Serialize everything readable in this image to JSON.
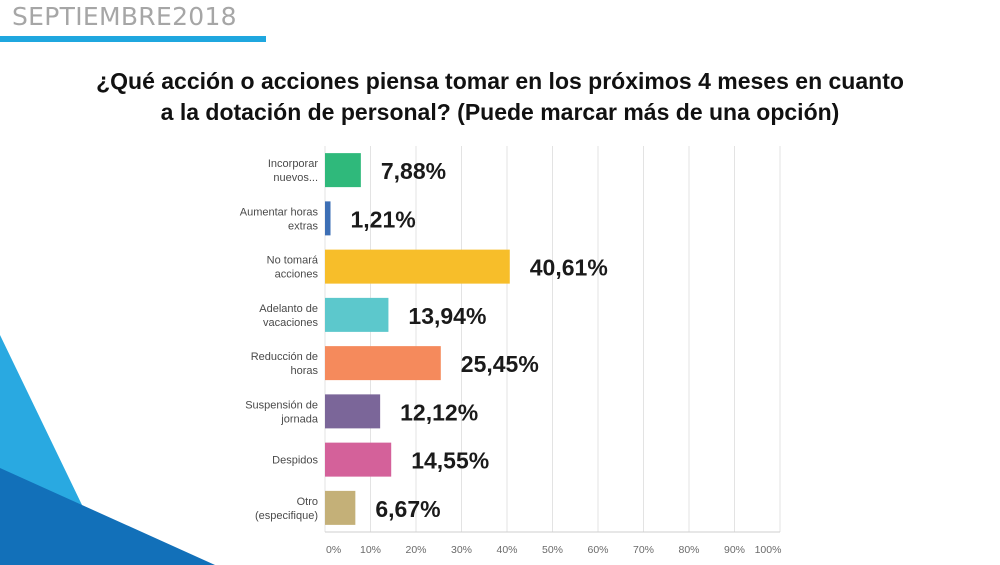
{
  "header": {
    "text": "SEPTIEMBRE2018"
  },
  "colors": {
    "accent": "#1fa7df",
    "deco_light": "#29a9e1",
    "deco_dark": "#1270b9"
  },
  "chart_data": {
    "type": "bar",
    "orientation": "horizontal",
    "title_line1": "¿Qué acción o acciones piensa tomar en los próximos 4 meses en cuanto",
    "title_line2": "a la dotación de personal? (Puede marcar más de una opción)",
    "categories": [
      [
        "Incorporar",
        "nuevos..."
      ],
      [
        "Aumentar horas",
        "extras"
      ],
      [
        "No tomará",
        "acciones"
      ],
      [
        "Adelanto de",
        "vacaciones"
      ],
      [
        "Reducción de",
        "horas"
      ],
      [
        "Suspensión de",
        "jornada"
      ],
      [
        "Despidos"
      ],
      [
        "Otro",
        "(especifique)"
      ]
    ],
    "values": [
      7.88,
      1.21,
      40.61,
      13.94,
      25.45,
      12.12,
      14.55,
      6.67
    ],
    "value_labels": [
      "7,88%",
      "1,21%",
      "40,61%",
      "13,94%",
      "25,45%",
      "12,12%",
      "14,55%",
      "6,67%"
    ],
    "bar_colors": [
      "#2fb97b",
      "#3d6fb5",
      "#f7be2a",
      "#5cc8cc",
      "#f58a5c",
      "#7b6699",
      "#d4619a",
      "#c4b078"
    ],
    "xlim": [
      0,
      100
    ],
    "x_ticks": [
      "0%",
      "10%",
      "20%",
      "30%",
      "40%",
      "50%",
      "60%",
      "70%",
      "80%",
      "90%",
      "100%"
    ],
    "grid": true
  }
}
